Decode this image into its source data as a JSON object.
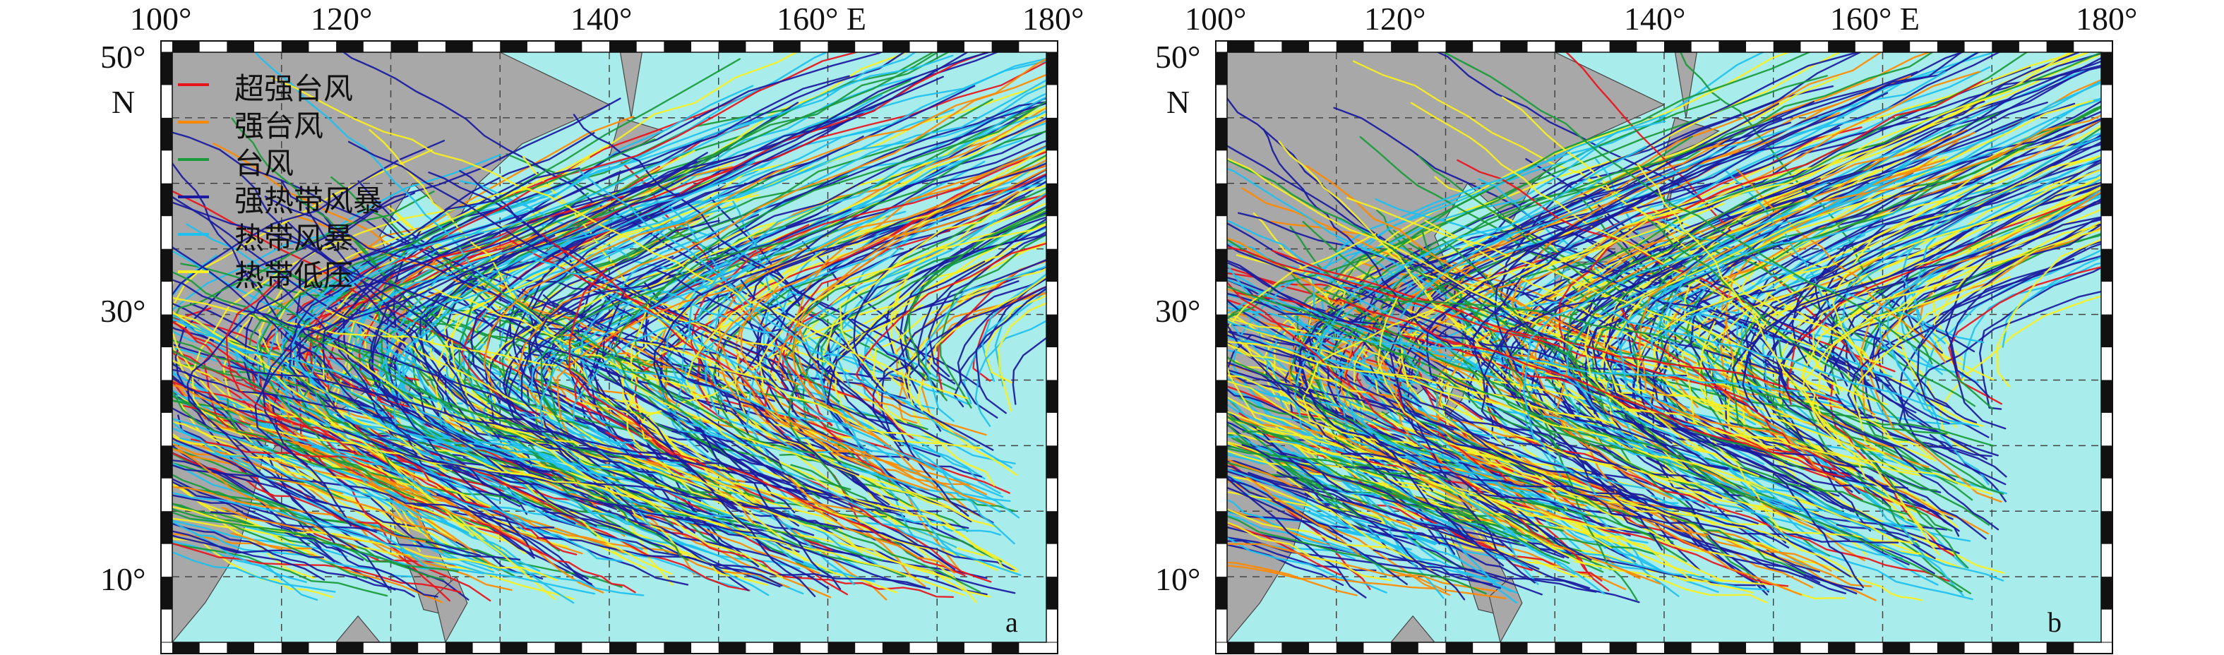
{
  "colors": {
    "ocean": "#a9ecec",
    "land": "#a8a8a8",
    "grid": "#444444",
    "frame_dark": "#111111",
    "frame_light": "#ffffff"
  },
  "axes": {
    "lon_labels": [
      "100°",
      "120°",
      "140°",
      "160° E",
      "180°"
    ],
    "lat_labels": [
      "50°",
      "N",
      "30°",
      "10°"
    ],
    "lon_range": [
      100,
      180
    ],
    "lat_range": [
      5,
      50
    ]
  },
  "legend": {
    "items": [
      {
        "label": "超强台风",
        "color": "#e8141c"
      },
      {
        "label": "强台风",
        "color": "#ff8a00"
      },
      {
        "label": "台风",
        "color": "#1a9a3a"
      },
      {
        "label": "强热带风暴",
        "color": "#1a1aa0"
      },
      {
        "label": "热带风暴",
        "color": "#1ec0f0"
      },
      {
        "label": "热带低压",
        "color": "#f8f020"
      }
    ]
  },
  "panels": [
    {
      "id": "a",
      "letter": "a",
      "genesis": {
        "lon": [
          112,
          178
        ],
        "lat": [
          8,
          26
        ]
      }
    },
    {
      "id": "b",
      "letter": "b",
      "genesis": {
        "lon": [
          110,
          172
        ],
        "lat": [
          8,
          28
        ]
      }
    }
  ]
}
